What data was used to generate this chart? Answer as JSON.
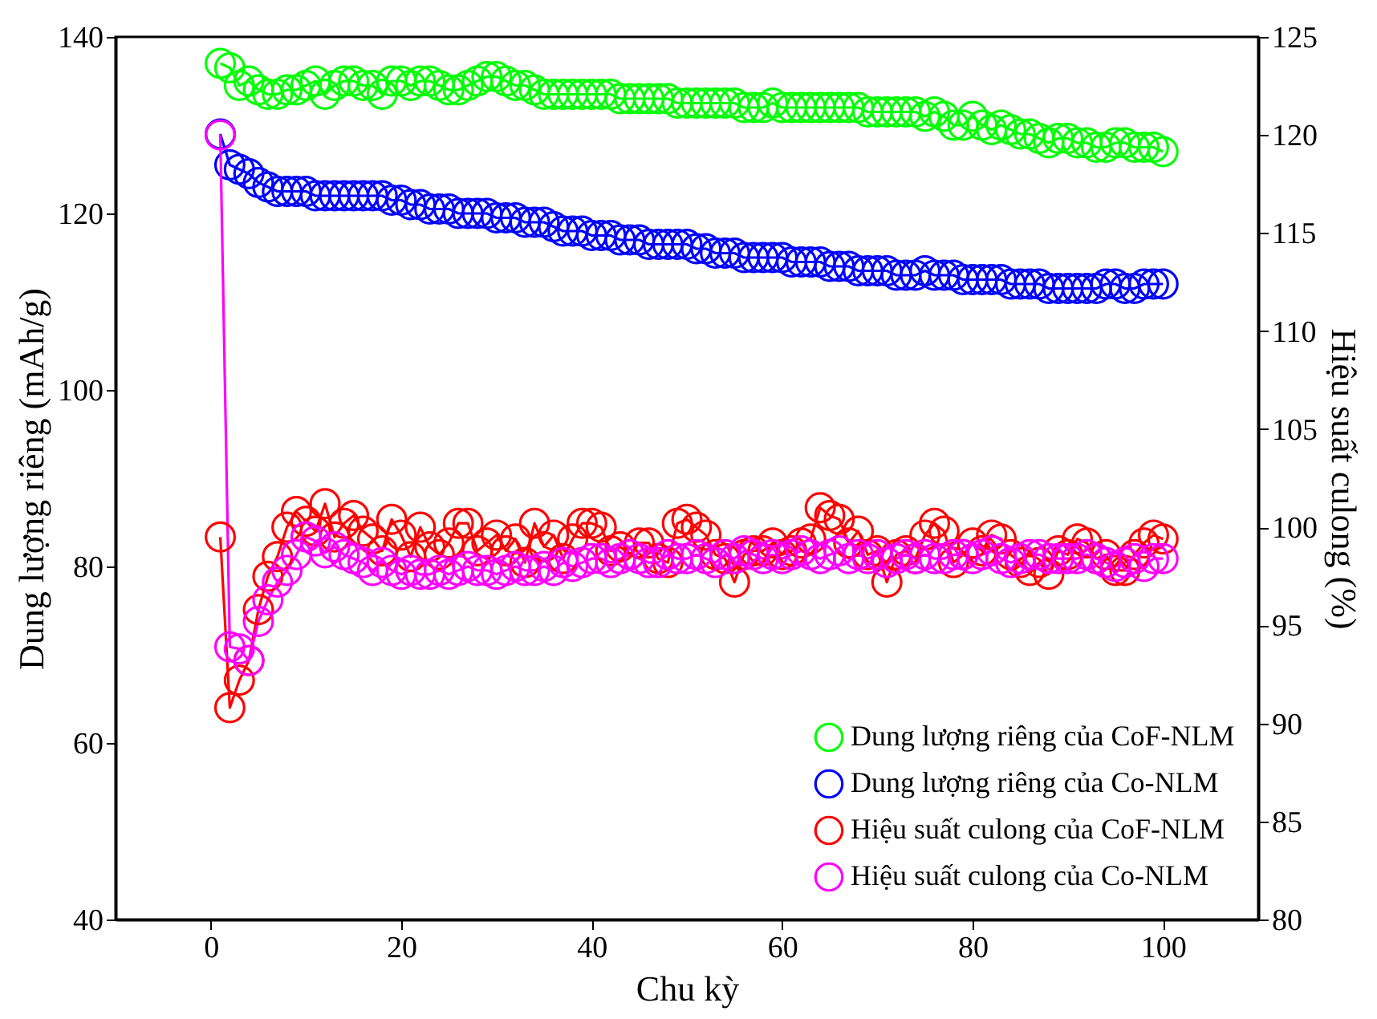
{
  "chart_data": {
    "type": "line",
    "xlabel": "Chu kỳ",
    "ylabel": "Dung lượng riêng (mAh/g)",
    "y2label": "Hiệu suất culong (%)",
    "x": [
      1,
      2,
      3,
      4,
      5,
      6,
      7,
      8,
      9,
      10,
      11,
      12,
      13,
      14,
      15,
      16,
      17,
      18,
      19,
      20,
      21,
      22,
      23,
      24,
      25,
      26,
      27,
      28,
      29,
      30,
      31,
      32,
      33,
      34,
      35,
      36,
      37,
      38,
      39,
      40,
      41,
      42,
      43,
      44,
      45,
      46,
      47,
      48,
      49,
      50,
      51,
      52,
      53,
      54,
      55,
      56,
      57,
      58,
      59,
      60,
      61,
      62,
      63,
      64,
      65,
      66,
      67,
      68,
      69,
      70,
      71,
      72,
      73,
      74,
      75,
      76,
      77,
      78,
      79,
      80,
      81,
      82,
      83,
      84,
      85,
      86,
      87,
      88,
      89,
      90,
      91,
      92,
      93,
      94,
      95,
      96,
      97,
      98,
      99,
      100
    ],
    "xlim": [
      -10,
      110
    ],
    "xticks": [
      0,
      20,
      40,
      60,
      80,
      100
    ],
    "ylim": [
      40,
      140
    ],
    "yticks": [
      40,
      60,
      80,
      100,
      120,
      140
    ],
    "y2lim": [
      80,
      125
    ],
    "y2ticks": [
      80,
      85,
      90,
      95,
      100,
      105,
      110,
      115,
      120,
      125
    ],
    "grid": false,
    "legend": "bottom right",
    "marker": "circle",
    "line_style": "solid",
    "series": [
      {
        "name": "Dung lượng riêng của CoF-NLM",
        "color": "#00ff00",
        "values": [
          137,
          136.5,
          134.5,
          135,
          134,
          133.5,
          133.5,
          134,
          134,
          134.5,
          135,
          133.5,
          134.5,
          135,
          135,
          134.5,
          134.5,
          133.5,
          135,
          135,
          134.5,
          135,
          135,
          134.5,
          134,
          134,
          134.5,
          135,
          135.5,
          135.5,
          135,
          134.5,
          134.5,
          134,
          133.5,
          133.5,
          133.5,
          133.5,
          133.5,
          133.5,
          133.5,
          133.5,
          133,
          133,
          133,
          133,
          133,
          133,
          132.5,
          132.5,
          132.5,
          132.5,
          132.5,
          132.5,
          132.5,
          132,
          132,
          132,
          132.5,
          132,
          132,
          132,
          132,
          132,
          132,
          132,
          132,
          132,
          131.5,
          131.5,
          131.5,
          131.5,
          131.5,
          131.5,
          131,
          131.5,
          131,
          130,
          130,
          131,
          130,
          129.5,
          130,
          129.5,
          129,
          129,
          128.5,
          128,
          128.5,
          128.5,
          128,
          128,
          127.5,
          127.5,
          128,
          128,
          127.5,
          127.5,
          127.5,
          127
        ]
      },
      {
        "name": "Dung lượng riêng của Co-NLM",
        "color": "#0000ff",
        "values": [
          129,
          125.5,
          125,
          124.5,
          123.5,
          123,
          122.5,
          122.5,
          122.5,
          122.5,
          122,
          122,
          122,
          122,
          122,
          122,
          122,
          122,
          121.5,
          121.5,
          121,
          121,
          120.5,
          120.5,
          120.5,
          120,
          120,
          120,
          120,
          119.5,
          119.5,
          119.5,
          119,
          119,
          119,
          118.5,
          118,
          118,
          118,
          117.5,
          117.5,
          117.5,
          117,
          117,
          117,
          116.5,
          116.5,
          116.5,
          116.5,
          116.5,
          116,
          116,
          115.5,
          115.5,
          115.5,
          115,
          115,
          115,
          115,
          115,
          114.5,
          114.5,
          114.5,
          114.5,
          114,
          114,
          114,
          113.5,
          113.5,
          113.5,
          113.5,
          113,
          113,
          113,
          113.5,
          113,
          113,
          113,
          112.5,
          112.5,
          112.5,
          112.5,
          112.5,
          112,
          112,
          112,
          112,
          111.5,
          111.5,
          111.5,
          111.5,
          111.5,
          111.5,
          112,
          112,
          111.5,
          111.5,
          112,
          112,
          112
        ]
      },
      {
        "name": "Hiệu suất culong của CoF-NLM",
        "color": "#ff0000",
        "axis": "y2",
        "values": [
          99.5,
          90.8,
          92.2,
          93.2,
          95.8,
          97.5,
          98.5,
          100,
          100.8,
          100.3,
          99.8,
          101.2,
          99.5,
          100.2,
          100.6,
          99.8,
          99.4,
          98.8,
          100.4,
          99.6,
          98.5,
          100,
          99,
          98.6,
          99.2,
          100.2,
          100.2,
          98.8,
          99.2,
          99.6,
          98.8,
          99.4,
          98.2,
          100.2,
          99,
          99.6,
          98.4,
          99.4,
          100.2,
          100.2,
          100,
          98.8,
          99,
          98.6,
          99.2,
          99.2,
          98.4,
          98.2,
          100.2,
          100.4,
          100,
          99.6,
          98.6,
          98.4,
          97.2,
          98.6,
          98.8,
          98.8,
          99.2,
          98.6,
          98.8,
          99.2,
          99.4,
          101,
          100.6,
          100.4,
          99.2,
          99.8,
          98.6,
          98.8,
          97.2,
          98.6,
          98.8,
          98.4,
          99.6,
          100.2,
          99.8,
          98.2,
          98.6,
          99.2,
          98.8,
          99.6,
          99.4,
          98.6,
          98.2,
          97.8,
          98.2,
          97.6,
          98.8,
          98.6,
          99.4,
          99.2,
          98.4,
          98.6,
          97.8,
          97.8,
          98.6,
          99.2,
          99.6,
          99.4
        ]
      },
      {
        "name": "Hiệu suất culong của Co-NLM",
        "color": "#ff00ff",
        "axis": "y2",
        "values": [
          120,
          93.9,
          93.8,
          93.2,
          95.2,
          96.3,
          97.2,
          97.8,
          98.6,
          99.5,
          99.3,
          98.7,
          99,
          98.6,
          98.4,
          98.2,
          97.8,
          98.2,
          97.8,
          97.6,
          97.8,
          97.6,
          97.6,
          97.8,
          97.6,
          97.8,
          98,
          97.8,
          97.8,
          97.6,
          97.8,
          98,
          97.8,
          97.8,
          98,
          97.8,
          98.2,
          98,
          98.2,
          98.4,
          98.4,
          98.2,
          98.4,
          98.6,
          98.4,
          98.2,
          98.2,
          98.6,
          98.4,
          98.4,
          98.6,
          98.4,
          98.2,
          98.6,
          98.4,
          98.8,
          98.6,
          98.4,
          98.6,
          98.4,
          98.6,
          98.8,
          98.6,
          98.4,
          98.6,
          98.8,
          98.4,
          98.6,
          98.4,
          98.6,
          98.2,
          98.4,
          98.6,
          98.4,
          98.6,
          98.4,
          98.4,
          98.6,
          98.6,
          98.4,
          98.6,
          98.8,
          98.4,
          98.2,
          98.4,
          98.6,
          98.6,
          98.4,
          98.4,
          98.4,
          98.4,
          98.6,
          98.4,
          98.2,
          98,
          98.2,
          98.4,
          98,
          98.4,
          98.4
        ]
      }
    ]
  }
}
